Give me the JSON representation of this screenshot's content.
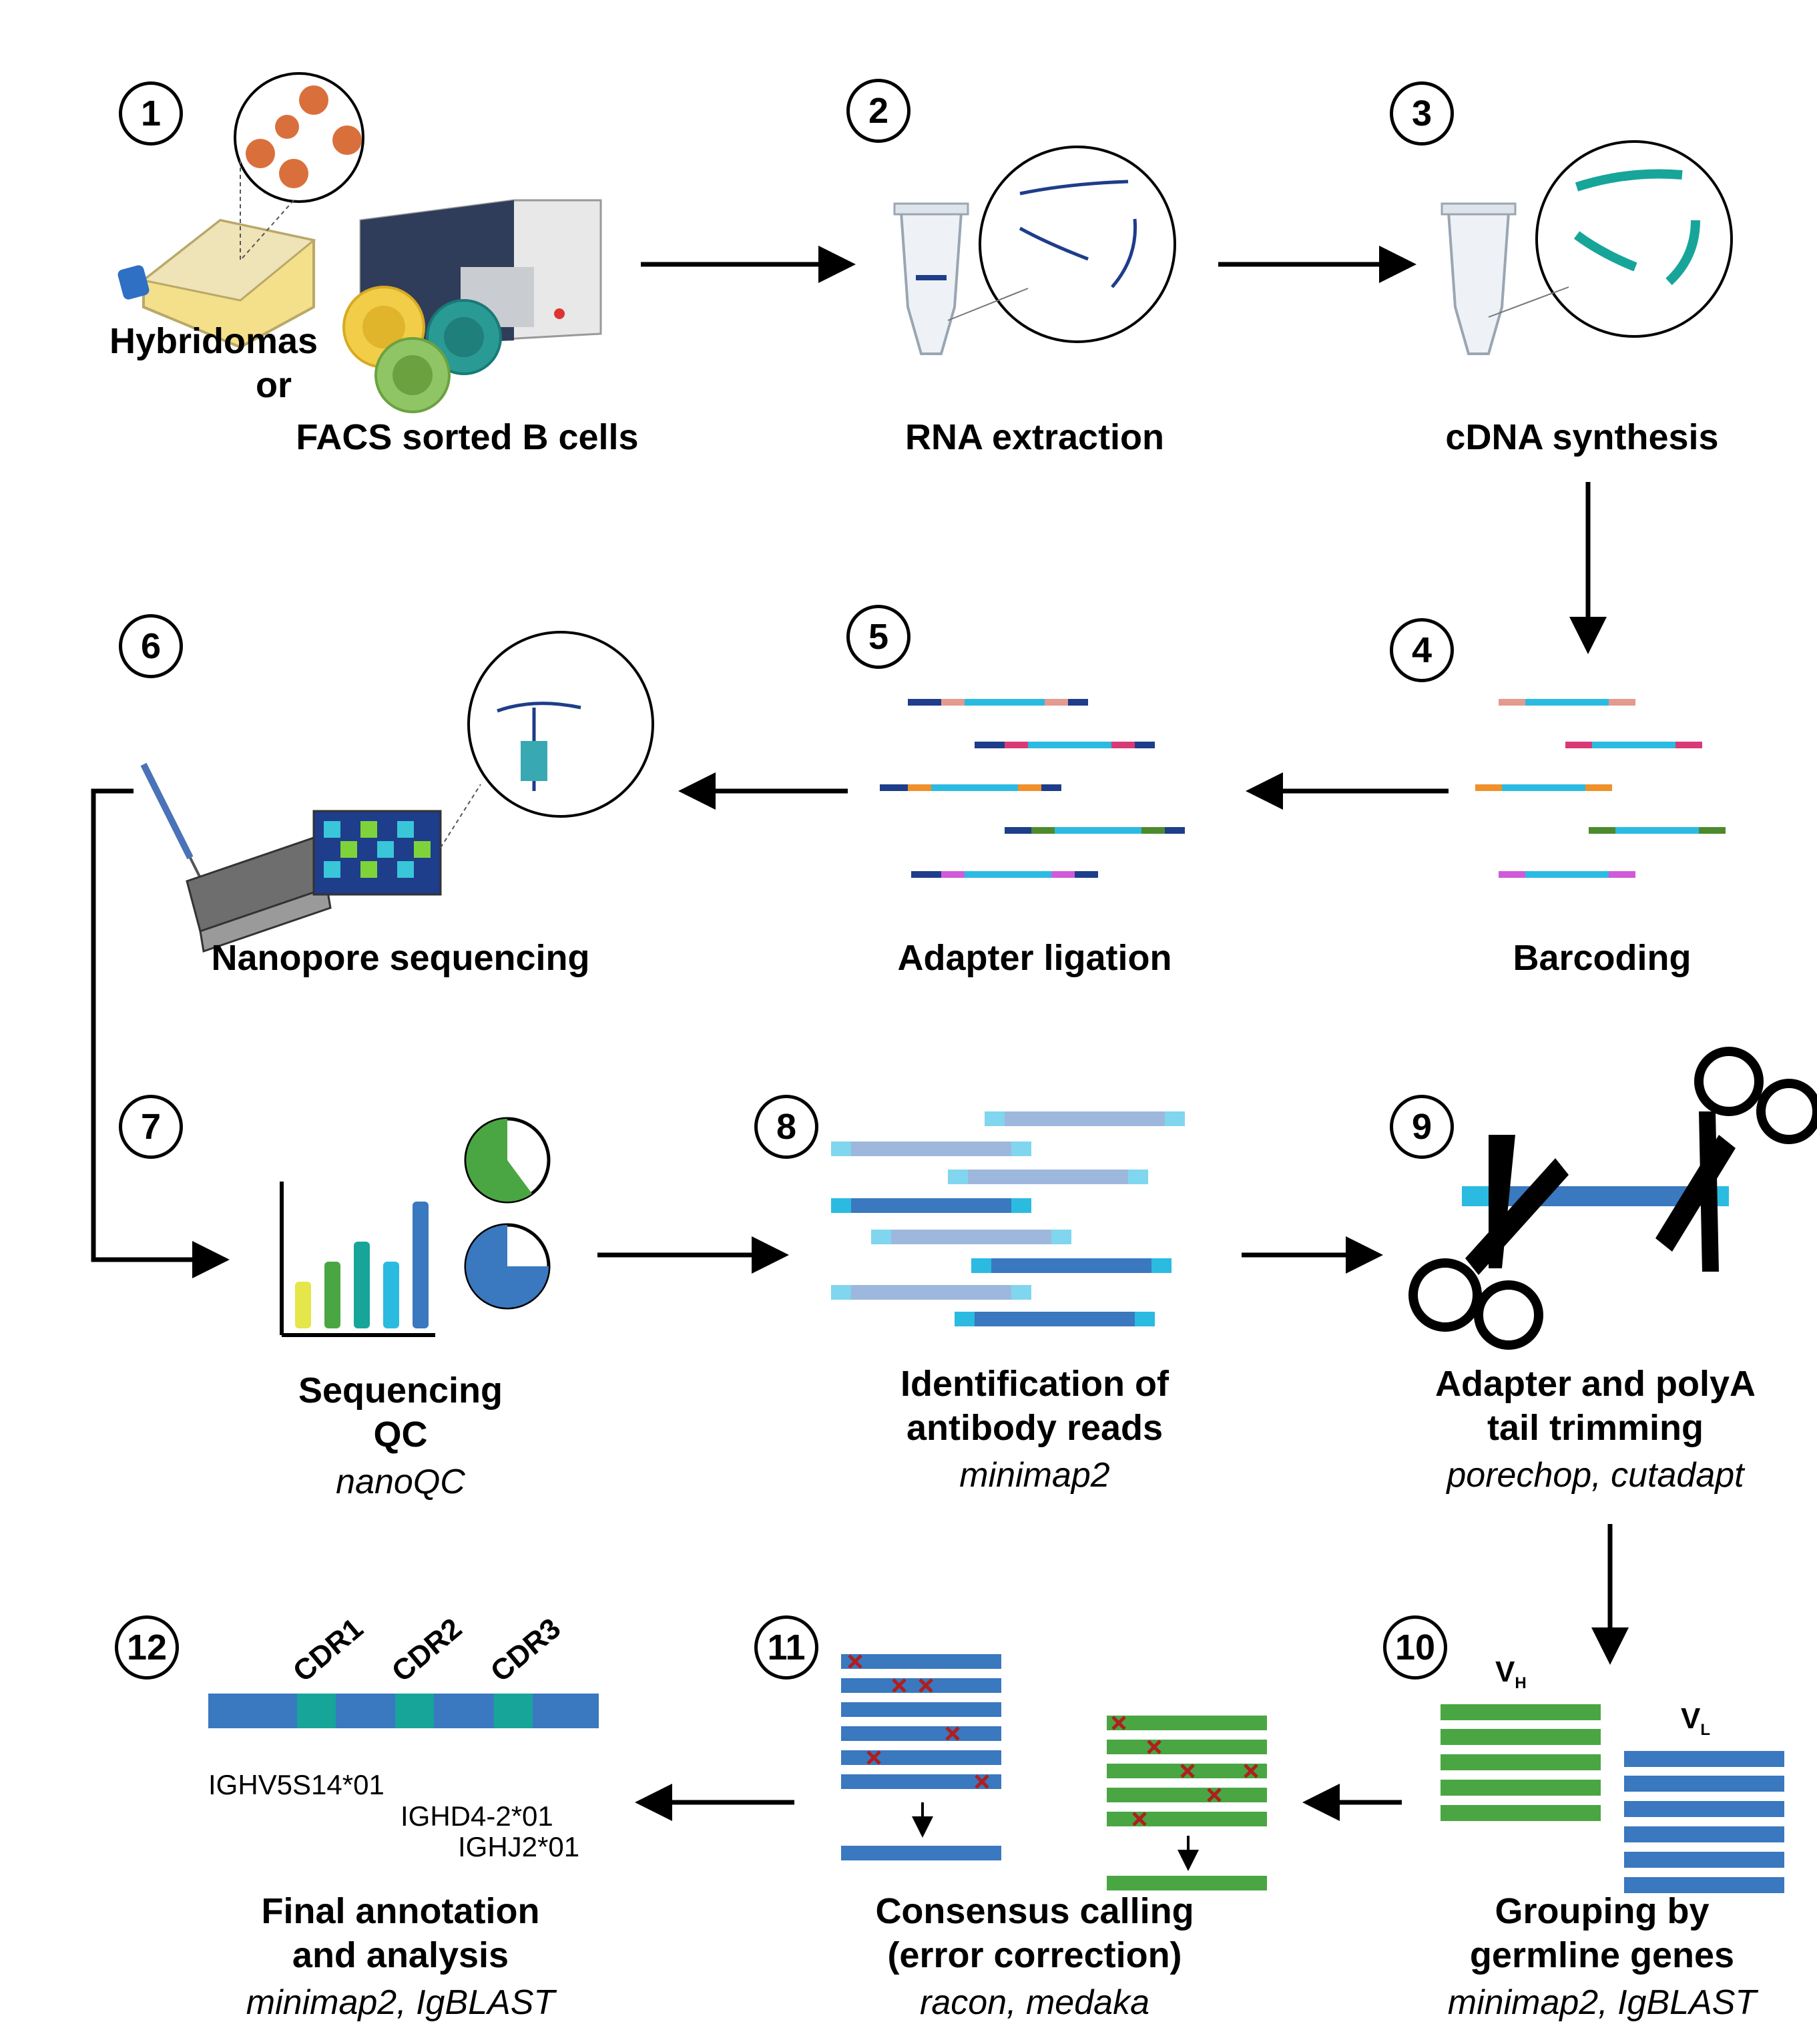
{
  "steps": [
    {
      "num": "1",
      "label_lines": [
        "Hybridomas",
        "or"
      ],
      "label2": "FACS sorted B cells"
    },
    {
      "num": "2",
      "label": "RNA extraction"
    },
    {
      "num": "3",
      "label": "cDNA synthesis"
    },
    {
      "num": "4",
      "label": "Barcoding"
    },
    {
      "num": "5",
      "label": "Adapter ligation"
    },
    {
      "num": "6",
      "label": "Nanopore sequencing"
    },
    {
      "num": "7",
      "label_lines": [
        "Sequencing",
        "QC"
      ],
      "tool": "nanoQC"
    },
    {
      "num": "8",
      "label_lines": [
        "Identification of",
        "antibody reads"
      ],
      "tool": "minimap2"
    },
    {
      "num": "9",
      "label_lines": [
        "Adapter and polyA",
        "tail trimming"
      ],
      "tool": "porechop, cutadapt"
    },
    {
      "num": "10",
      "label_lines": [
        "Grouping by",
        "germline genes"
      ],
      "tool": "minimap2, IgBLAST"
    },
    {
      "num": "11",
      "label_lines": [
        "Consensus calling",
        "(error correction)"
      ],
      "tool": "racon, medaka"
    },
    {
      "num": "12",
      "label_lines": [
        "Final annotation",
        "and analysis"
      ],
      "tool": "minimap2, IgBLAST"
    }
  ],
  "annotation": {
    "cdrs": [
      "CDR1",
      "CDR2",
      "CDR3"
    ],
    "genes": [
      "IGHV5S14*01",
      "IGHD4-2*01",
      "IGHJ2*01"
    ]
  },
  "grouping": {
    "vh": "V",
    "vh_sub": "H",
    "vl": "V",
    "vl_sub": "L"
  },
  "colors": {
    "blue": "#3a78bf",
    "green": "#4aa642",
    "teal": "#17a59a",
    "cyan": "#2bbbe0",
    "light_blue": "#9db8dc",
    "error_red": "#b01e1e",
    "navy": "#1e3d8a"
  }
}
